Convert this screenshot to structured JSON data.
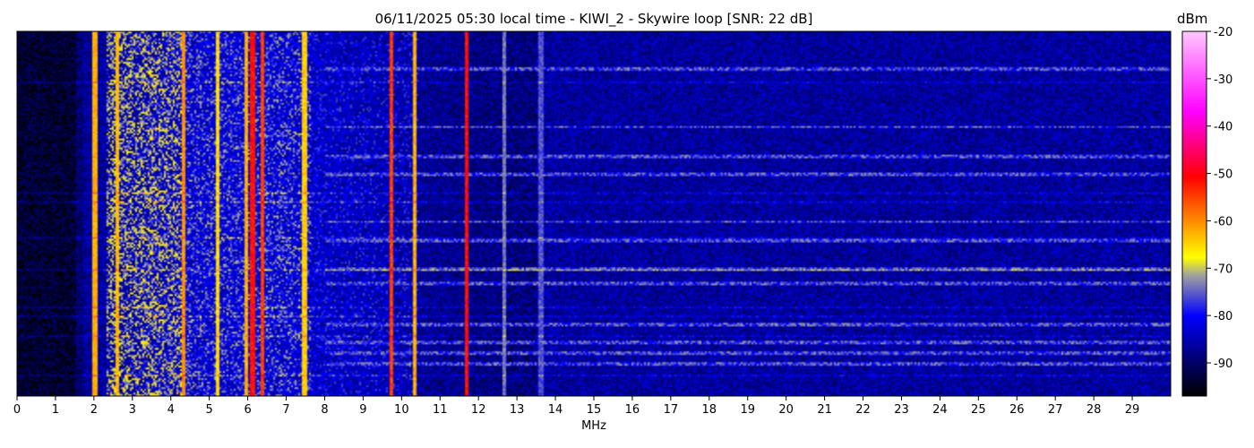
{
  "chart_data": {
    "type": "heatmap",
    "title": "06/11/2025 05:30 local time - KIWI_2 - Skywire loop [SNR: 22 dB]",
    "xlabel": "MHz",
    "xlim": [
      0,
      30
    ],
    "x_ticks": [
      "0",
      "1",
      "2",
      "3",
      "4",
      "5",
      "6",
      "7",
      "8",
      "9",
      "10",
      "11",
      "12",
      "13",
      "14",
      "15",
      "16",
      "17",
      "18",
      "19",
      "20",
      "21",
      "22",
      "23",
      "24",
      "25",
      "26",
      "27",
      "28",
      "29"
    ],
    "colorbar": {
      "label": "dBm",
      "range": [
        -97,
        -20
      ],
      "ticks": [
        "-20",
        "-30",
        "-40",
        "-50",
        "-60",
        "-70",
        "-80",
        "-90"
      ],
      "colormap": [
        "#000000",
        "#0000ff",
        "#a0a0a0",
        "#ffff00",
        "#ff0000",
        "#ff00ff",
        "#ffc8ff"
      ]
    },
    "signals": [
      {
        "freq_mhz": 2.0,
        "dbm": -62
      },
      {
        "freq_mhz": 2.6,
        "dbm": -63
      },
      {
        "freq_mhz": 4.3,
        "dbm": -60
      },
      {
        "freq_mhz": 5.2,
        "dbm": -65
      },
      {
        "freq_mhz": 5.95,
        "dbm": -62
      },
      {
        "freq_mhz": 6.1,
        "dbm": -52
      },
      {
        "freq_mhz": 6.35,
        "dbm": -55
      },
      {
        "freq_mhz": 7.45,
        "dbm": -64
      },
      {
        "freq_mhz": 9.7,
        "dbm": -55
      },
      {
        "freq_mhz": 10.3,
        "dbm": -62
      },
      {
        "freq_mhz": 11.65,
        "dbm": -52
      },
      {
        "freq_mhz": 12.65,
        "dbm": -74
      },
      {
        "freq_mhz": 13.6,
        "dbm": -76
      }
    ],
    "bands": [
      {
        "from_mhz": 2.3,
        "to_mhz": 4.3,
        "dbm": -70
      },
      {
        "from_mhz": 4.3,
        "to_mhz": 7.6,
        "dbm": -76
      },
      {
        "from_mhz": 7.6,
        "to_mhz": 10.4,
        "dbm": -82
      }
    ],
    "grid": false
  }
}
